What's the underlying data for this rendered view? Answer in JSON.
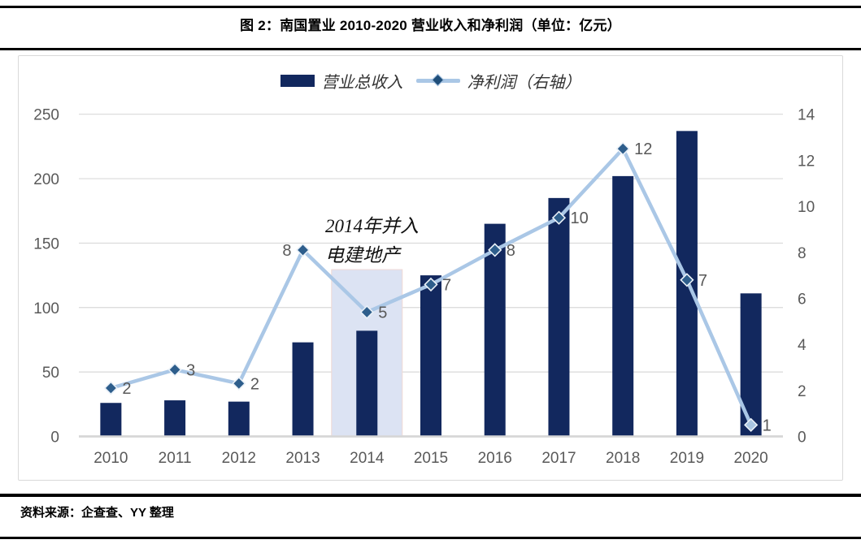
{
  "header": {
    "title": "图 2：南国置业 2010-2020 营业收入和净利润（单位：亿元）"
  },
  "chart_data": {
    "type": "combo-bar-line",
    "title": "图 2：南国置业 2010-2020 营业收入和净利润（单位：亿元）",
    "unit": "亿元",
    "categories": [
      "2010",
      "2011",
      "2012",
      "2013",
      "2014",
      "2015",
      "2016",
      "2017",
      "2018",
      "2019",
      "2020"
    ],
    "series": [
      {
        "name": "营业总收入",
        "type": "bar",
        "axis": "left",
        "color": "#12285e",
        "values": [
          26,
          28,
          27,
          73,
          82,
          125,
          165,
          185,
          202,
          237,
          111
        ]
      },
      {
        "name": "净利润（右轴）",
        "type": "line",
        "axis": "right",
        "color": "#aac7e6",
        "marker_color": "#2e5e8c",
        "values": [
          2.1,
          2.9,
          2.3,
          8.1,
          5.4,
          6.6,
          8.1,
          9.5,
          12.5,
          6.8,
          0.5
        ],
        "point_labels": [
          "2",
          "3",
          "2",
          "8",
          "5",
          "7",
          "8",
          "10",
          "12",
          "7",
          "1"
        ],
        "label_side": [
          "right",
          "right",
          "right",
          "left",
          "right",
          "right",
          "right",
          "right",
          "right",
          "right",
          "right"
        ]
      }
    ],
    "left_axis": {
      "min": 0,
      "max": 250,
      "step": 50,
      "ticks": [
        "0",
        "50",
        "100",
        "150",
        "200",
        "250"
      ]
    },
    "right_axis": {
      "min": 0,
      "max": 14,
      "step": 2,
      "ticks": [
        "0",
        "2",
        "4",
        "6",
        "8",
        "10",
        "12",
        "14"
      ]
    },
    "grid": true,
    "legend_position": "top-center",
    "annotation": {
      "lines": [
        "2014年并入",
        "电建地产"
      ],
      "highlight_category": "2014",
      "highlight_color": "#dce3f3"
    },
    "tick_color": "#595959",
    "grid_color": "#d9d9d9"
  },
  "footer": {
    "source": "资料来源：企查查、YY 整理"
  }
}
